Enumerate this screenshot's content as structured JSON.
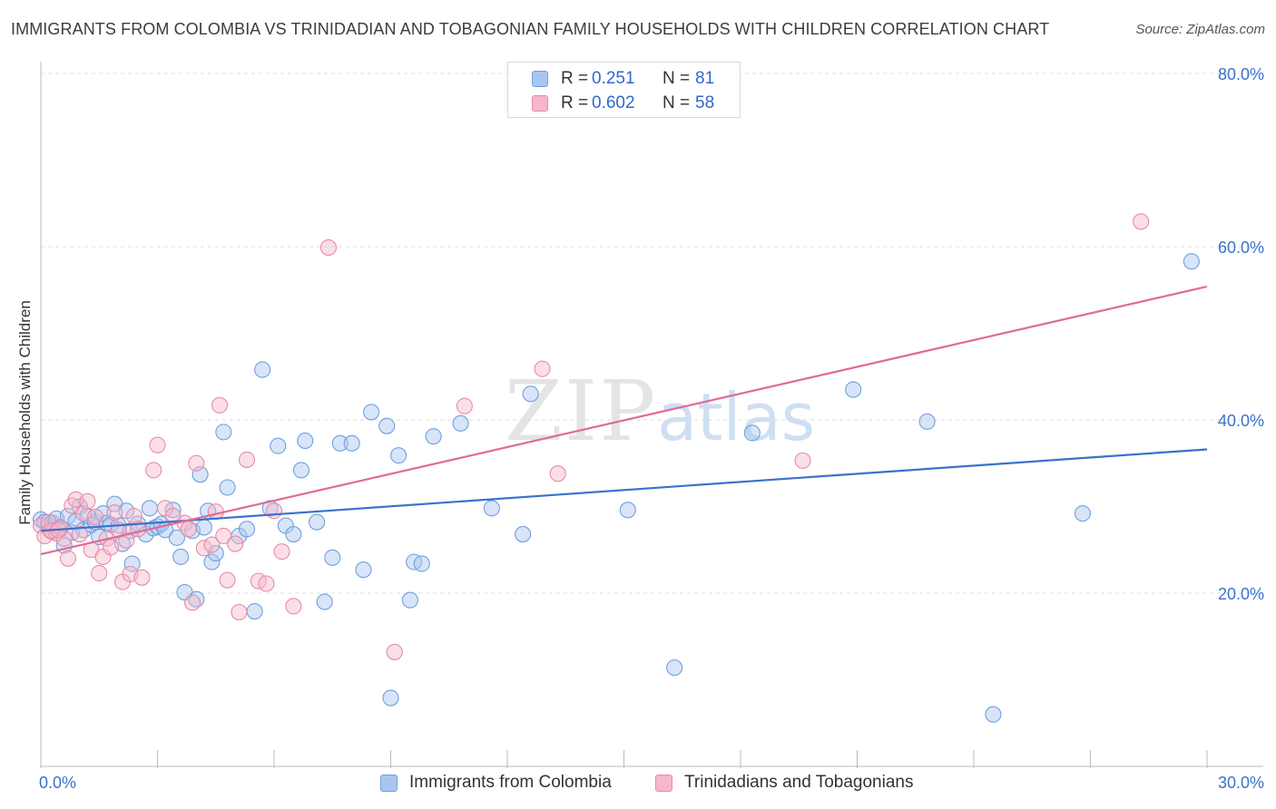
{
  "title": "IMMIGRANTS FROM COLOMBIA VS TRINIDADIAN AND TOBAGONIAN FAMILY HOUSEHOLDS WITH CHILDREN CORRELATION CHART",
  "source": "Source: ZipAtlas.com",
  "watermark": {
    "zip": "ZIP",
    "atlas": "atlas"
  },
  "colors": {
    "blue_fill": "#a9c6f0",
    "blue_stroke": "#6f9fe0",
    "blue_line": "#3a72cc",
    "pink_fill": "#f5b8cb",
    "pink_stroke": "#e88aa8",
    "pink_line": "#e06b94",
    "tick_label": "#3a72cc",
    "grid": "#dddddd"
  },
  "legend_top": [
    {
      "series": "blue",
      "r_label": "R =",
      "r_value": "0.251",
      "n_label": "N =",
      "n_value": "81"
    },
    {
      "series": "pink",
      "r_label": "R =",
      "r_value": "0.602",
      "n_label": "N =",
      "n_value": "58"
    }
  ],
  "chart_data": {
    "type": "scatter",
    "title": "IMMIGRANTS FROM COLOMBIA VS TRINIDADIAN AND TOBAGONIAN FAMILY HOUSEHOLDS WITH CHILDREN CORRELATION CHART",
    "xlabel": "",
    "ylabel": "Family Households with Children",
    "xlim": [
      0,
      30
    ],
    "ylim": [
      0,
      80
    ],
    "x_tick_labels": [
      "0.0%",
      "30.0%"
    ],
    "y_ticks": [
      20,
      40,
      60,
      80
    ],
    "y_tick_labels": [
      "20.0%",
      "40.0%",
      "60.0%",
      "80.0%"
    ],
    "grid": "horizontal dashed",
    "legend_position": "top-center and bottom",
    "series": [
      {
        "name": "Immigrants from Colombia",
        "color": "blue",
        "trend": {
          "x": [
            0,
            30
          ],
          "y": [
            27.2,
            36.6
          ]
        },
        "points": [
          [
            0.0,
            28.5
          ],
          [
            0.1,
            28.2
          ],
          [
            0.2,
            27.8
          ],
          [
            0.3,
            28.1
          ],
          [
            0.4,
            28.6
          ],
          [
            0.5,
            27.5
          ],
          [
            0.6,
            25.5
          ],
          [
            0.7,
            28.9
          ],
          [
            0.8,
            27.0
          ],
          [
            0.9,
            28.3
          ],
          [
            1.0,
            30.0
          ],
          [
            1.1,
            27.3
          ],
          [
            1.2,
            28.9
          ],
          [
            1.3,
            27.9
          ],
          [
            1.4,
            28.2
          ],
          [
            1.5,
            26.5
          ],
          [
            1.6,
            29.2
          ],
          [
            1.7,
            28.1
          ],
          [
            1.8,
            27.9
          ],
          [
            1.9,
            30.3
          ],
          [
            2.0,
            27.8
          ],
          [
            2.1,
            25.7
          ],
          [
            2.2,
            29.5
          ],
          [
            2.3,
            27.2
          ],
          [
            2.5,
            28.0
          ],
          [
            2.7,
            26.8
          ],
          [
            2.8,
            29.8
          ],
          [
            2.9,
            27.5
          ],
          [
            3.0,
            27.7
          ],
          [
            3.1,
            28.0
          ],
          [
            3.2,
            27.3
          ],
          [
            3.4,
            29.6
          ],
          [
            3.5,
            26.4
          ],
          [
            3.6,
            24.2
          ],
          [
            3.7,
            20.1
          ],
          [
            3.9,
            27.2
          ],
          [
            4.0,
            19.3
          ],
          [
            4.1,
            33.7
          ],
          [
            4.2,
            27.6
          ],
          [
            4.3,
            29.5
          ],
          [
            4.4,
            23.6
          ],
          [
            4.5,
            24.6
          ],
          [
            4.7,
            38.6
          ],
          [
            4.8,
            32.2
          ],
          [
            5.1,
            26.6
          ],
          [
            5.3,
            27.4
          ],
          [
            5.5,
            17.9
          ],
          [
            5.7,
            45.8
          ],
          [
            5.9,
            29.8
          ],
          [
            6.1,
            37.0
          ],
          [
            6.3,
            27.8
          ],
          [
            6.5,
            26.8
          ],
          [
            6.7,
            34.2
          ],
          [
            6.8,
            37.6
          ],
          [
            7.1,
            28.2
          ],
          [
            7.3,
            19.0
          ],
          [
            7.5,
            24.1
          ],
          [
            7.7,
            37.3
          ],
          [
            8.0,
            37.3
          ],
          [
            8.3,
            22.7
          ],
          [
            8.5,
            40.9
          ],
          [
            8.9,
            39.3
          ],
          [
            9.0,
            7.9
          ],
          [
            9.2,
            35.9
          ],
          [
            9.5,
            19.2
          ],
          [
            9.6,
            23.6
          ],
          [
            9.8,
            23.4
          ],
          [
            10.1,
            38.1
          ],
          [
            10.8,
            39.6
          ],
          [
            11.6,
            29.8
          ],
          [
            12.4,
            26.8
          ],
          [
            12.6,
            43.0
          ],
          [
            15.1,
            29.6
          ],
          [
            16.3,
            11.4
          ],
          [
            18.3,
            38.5
          ],
          [
            20.9,
            43.5
          ],
          [
            22.8,
            39.8
          ],
          [
            24.5,
            6.0
          ],
          [
            26.8,
            29.2
          ],
          [
            29.6,
            58.3
          ],
          [
            2.35,
            23.4
          ]
        ]
      },
      {
        "name": "Trinidadians and Tobagonians",
        "color": "pink",
        "trend": {
          "x": [
            0,
            30
          ],
          "y": [
            24.5,
            55.4
          ]
        },
        "points": [
          [
            0.0,
            27.8
          ],
          [
            0.1,
            26.6
          ],
          [
            0.2,
            28.2
          ],
          [
            0.3,
            27.1
          ],
          [
            0.4,
            26.9
          ],
          [
            0.5,
            27.6
          ],
          [
            0.6,
            26.3
          ],
          [
            0.7,
            24.0
          ],
          [
            0.8,
            30.1
          ],
          [
            0.9,
            30.8
          ],
          [
            1.0,
            26.8
          ],
          [
            1.1,
            29.2
          ],
          [
            1.2,
            30.6
          ],
          [
            1.3,
            25.0
          ],
          [
            1.4,
            28.8
          ],
          [
            1.5,
            22.3
          ],
          [
            1.6,
            24.2
          ],
          [
            1.7,
            26.3
          ],
          [
            1.8,
            25.3
          ],
          [
            1.9,
            29.3
          ],
          [
            2.0,
            27.3
          ],
          [
            2.1,
            21.3
          ],
          [
            2.2,
            26.1
          ],
          [
            2.3,
            22.2
          ],
          [
            2.4,
            28.9
          ],
          [
            2.5,
            27.4
          ],
          [
            2.6,
            21.8
          ],
          [
            2.9,
            34.2
          ],
          [
            3.0,
            37.1
          ],
          [
            3.2,
            29.8
          ],
          [
            3.4,
            28.9
          ],
          [
            3.7,
            28.1
          ],
          [
            3.8,
            27.4
          ],
          [
            3.9,
            18.9
          ],
          [
            4.0,
            35.0
          ],
          [
            4.2,
            25.2
          ],
          [
            4.4,
            25.6
          ],
          [
            4.5,
            29.4
          ],
          [
            4.6,
            41.7
          ],
          [
            4.7,
            26.6
          ],
          [
            4.8,
            21.5
          ],
          [
            5.0,
            25.7
          ],
          [
            5.1,
            17.8
          ],
          [
            5.3,
            35.4
          ],
          [
            5.6,
            21.4
          ],
          [
            5.8,
            21.1
          ],
          [
            6.0,
            29.5
          ],
          [
            6.2,
            24.8
          ],
          [
            6.5,
            18.5
          ],
          [
            7.4,
            59.9
          ],
          [
            9.1,
            13.2
          ],
          [
            10.9,
            41.6
          ],
          [
            12.9,
            45.9
          ],
          [
            13.3,
            33.8
          ],
          [
            19.6,
            35.3
          ],
          [
            28.3,
            62.9
          ],
          [
            0.25,
            27.2
          ],
          [
            0.45,
            27.3
          ]
        ]
      }
    ]
  },
  "legend_bottom": [
    {
      "series": "blue",
      "label": "Immigrants from Colombia"
    },
    {
      "series": "pink",
      "label": "Trinidadians and Tobagonians"
    }
  ]
}
